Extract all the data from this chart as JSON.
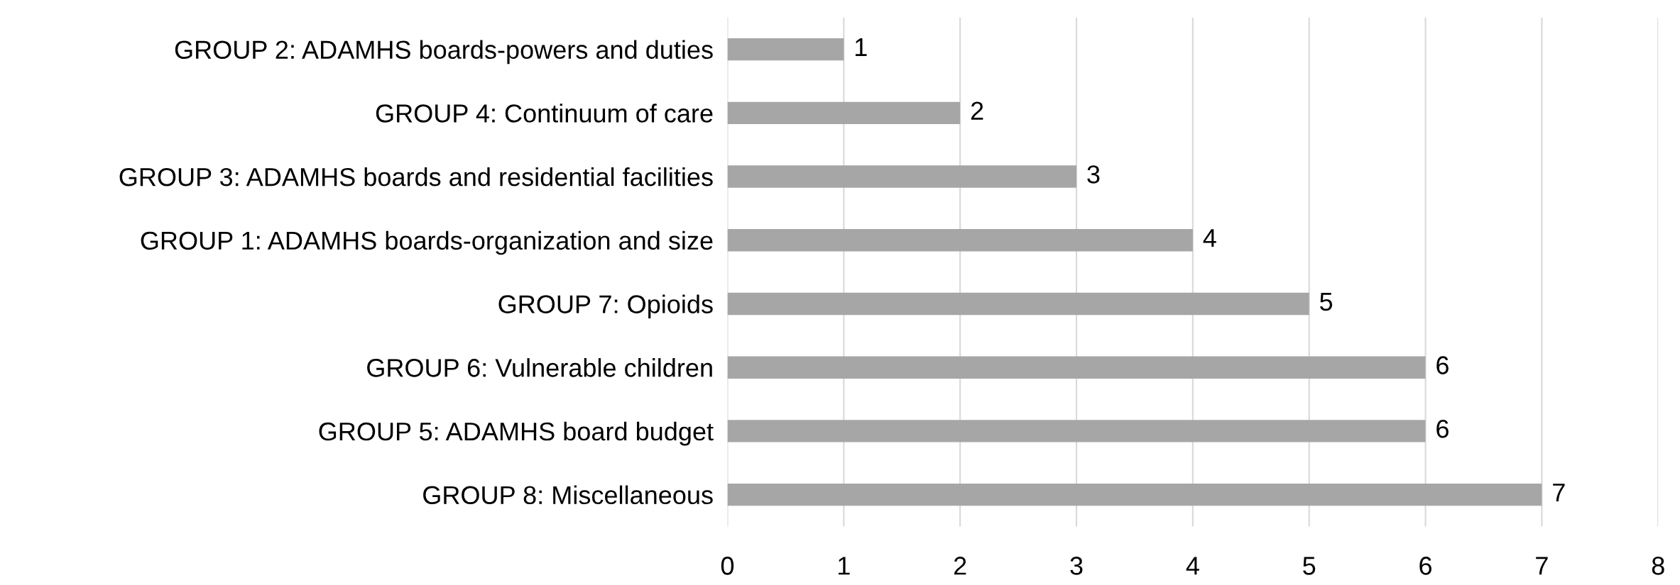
{
  "chart_data": {
    "type": "bar",
    "orientation": "horizontal",
    "categories": [
      "GROUP 2: ADAMHS boards-powers and duties",
      "GROUP 4: Continuum of care",
      "GROUP 3: ADAMHS boards and residential facilities",
      "GROUP 1: ADAMHS boards-organization and size",
      "GROUP 7: Opioids",
      "GROUP 6: Vulnerable children",
      "GROUP 5: ADAMHS board budget",
      "GROUP 8: Miscellaneous"
    ],
    "values": [
      1,
      2,
      3,
      4,
      5,
      6,
      6,
      7
    ],
    "color": "#a6a6a6",
    "xlim": [
      0,
      8
    ],
    "xticks": [
      0,
      1,
      2,
      3,
      4,
      5,
      6,
      7,
      8
    ],
    "grid": "x",
    "data_labels": true
  }
}
